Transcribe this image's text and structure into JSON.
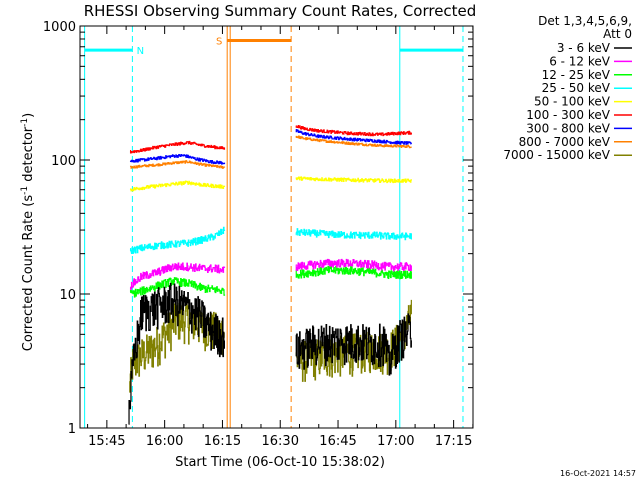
{
  "chart_data": {
    "type": "line",
    "title": "RHESSI Observing Summary Count Rates, Corrected",
    "xlabel": "Start Time (06-Oct-10 15:38:02)",
    "ylabel_parts": [
      "Corrected Count Rate (s",
      "-1",
      " detector",
      "-1",
      ")"
    ],
    "yscale": "log",
    "ylim": [
      1,
      1000
    ],
    "xlim_minutes": [
      0,
      102
    ],
    "x_ticks": [
      {
        "label": "15:45",
        "min": 6.97
      },
      {
        "label": "16:00",
        "min": 21.97
      },
      {
        "label": "16:15",
        "min": 36.97
      },
      {
        "label": "16:30",
        "min": 51.97
      },
      {
        "label": "16:45",
        "min": 66.97
      },
      {
        "label": "17:00",
        "min": 81.97
      },
      {
        "label": "17:15",
        "min": 96.97
      }
    ],
    "y_ticks": [
      {
        "label": "1",
        "value": 1
      },
      {
        "label": "10",
        "value": 10
      },
      {
        "label": "100",
        "value": 100
      },
      {
        "label": "1000",
        "value": 1000
      }
    ],
    "legend_header": [
      "Det 1,3,4,5,6,9,",
      "Att 0"
    ],
    "legend_position": "right",
    "series": [
      {
        "name": "3 - 6 keV",
        "color": "#000000",
        "seg1": [
          [
            12.6,
            1.3
          ],
          [
            13.2,
            2.0
          ],
          [
            14.0,
            3.5
          ],
          [
            16.0,
            7.5
          ],
          [
            19.0,
            8.0
          ],
          [
            24.0,
            9.0
          ],
          [
            28.0,
            8.0
          ],
          [
            31.0,
            7.0
          ],
          [
            34.0,
            5.5
          ],
          [
            37.5,
            5.0
          ]
        ],
        "seg2": [
          [
            56.0,
            3.8
          ],
          [
            60.0,
            4.3
          ],
          [
            64.0,
            4.5
          ],
          [
            68.0,
            4.5
          ],
          [
            72.0,
            4.5
          ],
          [
            76.0,
            4.3
          ],
          [
            79.0,
            4.5
          ],
          [
            80.0,
            3.0
          ],
          [
            81.5,
            4.0
          ],
          [
            83.0,
            4.8
          ],
          [
            86.0,
            5.5
          ]
        ],
        "jitter": 0.35
      },
      {
        "name": "6 - 12 keV",
        "color": "#ff00ff",
        "seg1": [
          [
            13.0,
            11.5
          ],
          [
            16.0,
            13.5
          ],
          [
            20.0,
            14.5
          ],
          [
            24.0,
            16.0
          ],
          [
            28.0,
            16.0
          ],
          [
            32.0,
            15.5
          ],
          [
            35.0,
            15.5
          ],
          [
            37.5,
            15.0
          ]
        ],
        "seg2": [
          [
            56.0,
            16.0
          ],
          [
            60.0,
            16.5
          ],
          [
            64.0,
            17.0
          ],
          [
            70.0,
            17.0
          ],
          [
            76.0,
            16.5
          ],
          [
            80.0,
            16.0
          ],
          [
            86.0,
            16.0
          ]
        ],
        "jitter": 0.07
      },
      {
        "name": "12 - 25 keV",
        "color": "#00ff00",
        "seg1": [
          [
            13.0,
            10.0
          ],
          [
            16.0,
            10.5
          ],
          [
            20.0,
            11.5
          ],
          [
            24.0,
            12.5
          ],
          [
            28.0,
            12.0
          ],
          [
            32.0,
            11.0
          ],
          [
            35.0,
            10.8
          ],
          [
            37.5,
            10.5
          ]
        ],
        "seg2": [
          [
            56.0,
            14.0
          ],
          [
            60.0,
            14.5
          ],
          [
            64.0,
            15.0
          ],
          [
            70.0,
            15.0
          ],
          [
            76.0,
            14.5
          ],
          [
            80.0,
            14.0
          ],
          [
            86.0,
            14.0
          ]
        ],
        "jitter": 0.07
      },
      {
        "name": "25 - 50 keV",
        "color": "#00ffff",
        "seg1": [
          [
            13.0,
            21.0
          ],
          [
            16.0,
            22.0
          ],
          [
            20.0,
            23.0
          ],
          [
            24.0,
            23.5
          ],
          [
            28.0,
            24.0
          ],
          [
            32.0,
            25.5
          ],
          [
            35.0,
            27.0
          ],
          [
            37.5,
            30.0
          ]
        ],
        "seg2": [
          [
            56.0,
            29.0
          ],
          [
            60.0,
            28.5
          ],
          [
            64.0,
            28.0
          ],
          [
            70.0,
            27.5
          ],
          [
            76.0,
            27.5
          ],
          [
            80.0,
            27.0
          ],
          [
            86.0,
            27.0
          ]
        ],
        "jitter": 0.06
      },
      {
        "name": "50 - 100 keV",
        "color": "#ffff00",
        "seg1": [
          [
            13.0,
            60.0
          ],
          [
            16.0,
            62.0
          ],
          [
            20.0,
            64.0
          ],
          [
            24.0,
            66.0
          ],
          [
            28.0,
            68.0
          ],
          [
            32.0,
            65.0
          ],
          [
            37.5,
            63.0
          ]
        ],
        "seg2": [
          [
            56.0,
            73.0
          ],
          [
            62.0,
            72.0
          ],
          [
            70.0,
            71.0
          ],
          [
            80.0,
            70.0
          ],
          [
            86.0,
            70.0
          ]
        ],
        "jitter": 0.03
      },
      {
        "name": "100 - 300 keV",
        "color": "#ff0000",
        "seg1": [
          [
            13.0,
            115.0
          ],
          [
            16.0,
            118.0
          ],
          [
            20.0,
            125.0
          ],
          [
            24.0,
            130.0
          ],
          [
            28.0,
            135.0
          ],
          [
            32.0,
            128.0
          ],
          [
            37.5,
            122.0
          ]
        ],
        "seg2": [
          [
            56.0,
            180.0
          ],
          [
            58.0,
            172.0
          ],
          [
            62.0,
            165.0
          ],
          [
            70.0,
            158.0
          ],
          [
            78.0,
            155.0
          ],
          [
            82.0,
            158.0
          ],
          [
            86.0,
            160.0
          ]
        ],
        "jitter": 0.025
      },
      {
        "name": "300 - 800 keV",
        "color": "#0000ff",
        "seg1": [
          [
            13.0,
            98.0
          ],
          [
            16.0,
            100.0
          ],
          [
            20.0,
            103.0
          ],
          [
            24.0,
            107.0
          ],
          [
            27.0,
            108.0
          ],
          [
            30.0,
            102.0
          ],
          [
            34.0,
            97.0
          ],
          [
            37.5,
            95.0
          ]
        ],
        "seg2": [
          [
            56.0,
            165.0
          ],
          [
            58.0,
            158.0
          ],
          [
            62.0,
            150.0
          ],
          [
            70.0,
            143.0
          ],
          [
            78.0,
            138.0
          ],
          [
            82.0,
            135.0
          ],
          [
            86.0,
            133.0
          ]
        ],
        "jitter": 0.025
      },
      {
        "name": "800 - 7000 keV",
        "color": "#ff8000",
        "seg1": [
          [
            13.0,
            88.0
          ],
          [
            16.0,
            90.0
          ],
          [
            20.0,
            92.0
          ],
          [
            24.0,
            95.0
          ],
          [
            28.0,
            97.0
          ],
          [
            32.0,
            92.0
          ],
          [
            37.5,
            88.0
          ]
        ],
        "seg2": [
          [
            56.0,
            150.0
          ],
          [
            58.0,
            145.0
          ],
          [
            62.0,
            140.0
          ],
          [
            70.0,
            133.0
          ],
          [
            78.0,
            128.0
          ],
          [
            82.0,
            127.0
          ],
          [
            86.0,
            126.0
          ]
        ],
        "jitter": 0.02
      },
      {
        "name": "7000 - 15000 keV",
        "color": "#808000",
        "seg1": [
          [
            12.8,
            2.0
          ],
          [
            13.5,
            3.0
          ],
          [
            16.0,
            3.5
          ],
          [
            19.0,
            4.0
          ],
          [
            22.0,
            5.0
          ],
          [
            25.0,
            6.5
          ],
          [
            28.0,
            6.5
          ],
          [
            31.0,
            6.0
          ],
          [
            34.0,
            5.5
          ],
          [
            37.5,
            5.2
          ]
        ],
        "seg2": [
          [
            56.0,
            3.2
          ],
          [
            60.0,
            3.4
          ],
          [
            64.0,
            3.5
          ],
          [
            68.0,
            3.6
          ],
          [
            72.0,
            3.8
          ],
          [
            76.0,
            3.9
          ],
          [
            80.0,
            3.8
          ],
          [
            84.0,
            5.0
          ],
          [
            86.0,
            7.0
          ]
        ],
        "jitter": 0.35
      }
    ],
    "annotations": [
      {
        "kind": "night",
        "label": "N",
        "color": "#00ffff",
        "x_min": 1.2,
        "x_end_min": 13.6,
        "y_value": 660
      },
      {
        "kind": "night",
        "label": "",
        "color": "#00ffff",
        "x_min": 83.0,
        "x_end_min": 99.4,
        "y_value": 660
      },
      {
        "kind": "saa",
        "label": "S",
        "color": "#ff8000",
        "x_min": 38.2,
        "x_end_min": 54.8,
        "y_value": 780
      }
    ],
    "grid": false
  },
  "timestamp": "16-Oct-2021 14:57"
}
